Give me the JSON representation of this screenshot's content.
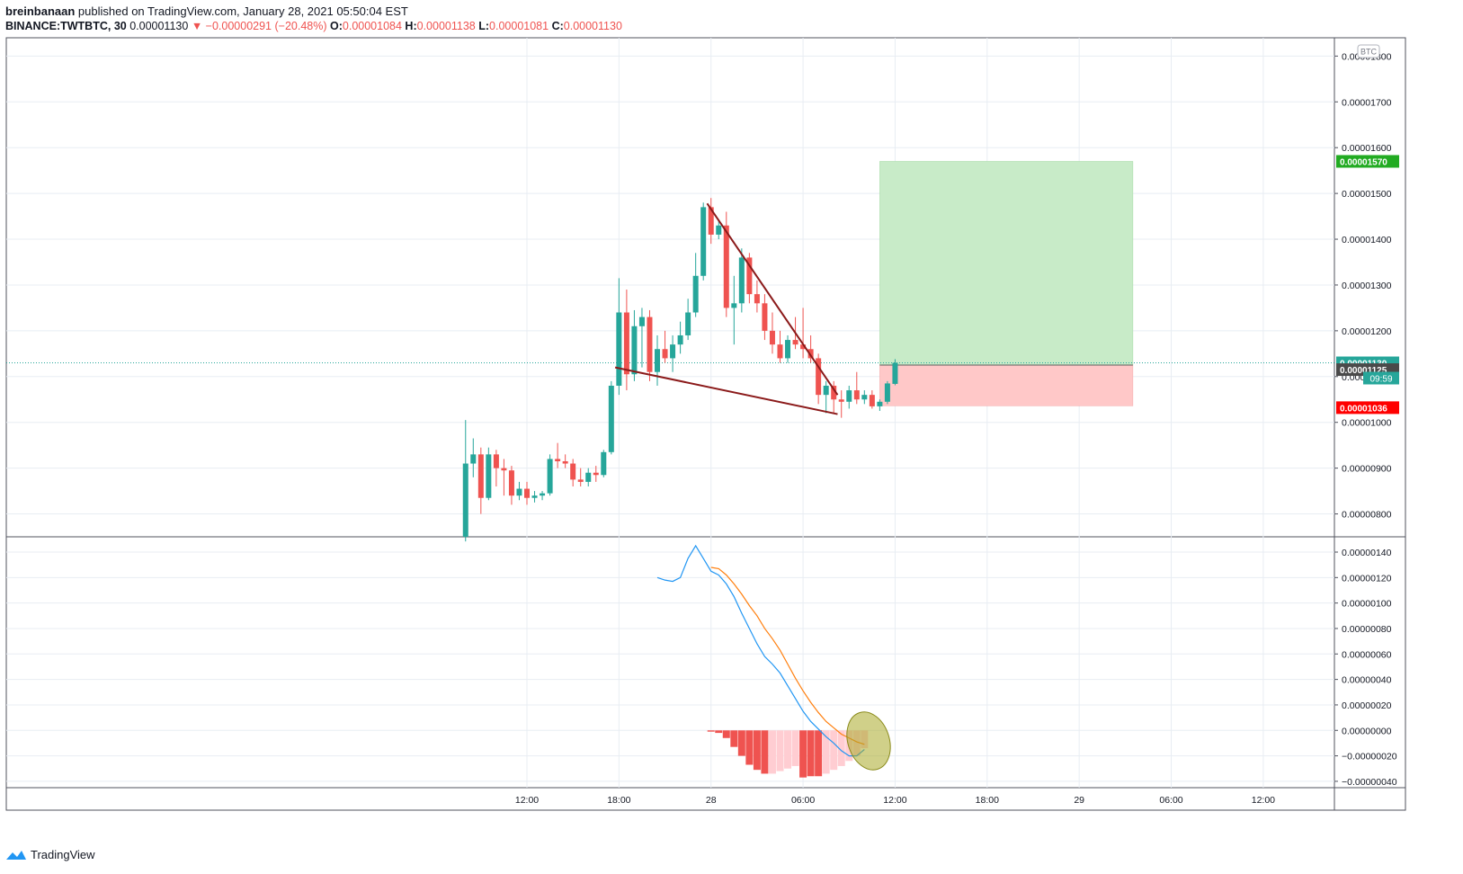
{
  "header": {
    "author": "breinbanaan",
    "published_text": "published on TradingView.com, January 28, 2021 05:50:04 EST"
  },
  "ticker": {
    "symbol": "BINANCE:TWTBTC, 30",
    "last": "0.00001130",
    "arrow": "▼",
    "change": "−0.00000291 (−20.48%)",
    "o_label": "O:",
    "o": "0.00001084",
    "h_label": "H:",
    "h": "0.00001138",
    "l_label": "L:",
    "l": "0.00001081",
    "c_label": "C:",
    "c": "0.00001130"
  },
  "footer": {
    "brand": "TradingView"
  },
  "colors": {
    "up": "#26a69a",
    "down": "#ef5350",
    "trend": "#8b1a1a",
    "macd": "#2196f3",
    "signal": "#ff7f0e",
    "hist_down": "#ef5350",
    "hist_light": "#ffcdd2",
    "profit": "#c8ebc8",
    "loss": "#ffc8c8",
    "grid": "#e8edf3"
  },
  "chart_data": [
    {
      "type": "candlestick",
      "currency_badge": "BTC",
      "ylim": [
        7.5e-06,
        1.84e-05
      ],
      "y_ticks": [
        "0.00001800",
        "0.00001700",
        "0.00001600",
        "0.00001500",
        "0.00001400",
        "0.00001300",
        "0.00001200",
        "0.00001100",
        "0.00001000",
        "0.00000900",
        "0.00000800"
      ],
      "x_ticks": [
        {
          "t": 0,
          "label": "12:00"
        },
        {
          "t": 12,
          "label": "18:00"
        },
        {
          "t": 24,
          "label": "28"
        },
        {
          "t": 36,
          "label": "06:00"
        },
        {
          "t": 48,
          "label": "12:00"
        },
        {
          "t": 60,
          "label": "18:00"
        },
        {
          "t": 72,
          "label": "29"
        },
        {
          "t": 84,
          "label": "06:00"
        },
        {
          "t": 96,
          "label": "12:00"
        }
      ],
      "start_t": -8,
      "candles": [
        {
          "o": 7.5e-06,
          "h": 1.005e-05,
          "l": 7.4e-06,
          "c": 9.1e-06
        },
        {
          "o": 9.1e-06,
          "h": 9.65e-06,
          "l": 8.8e-06,
          "c": 9.3e-06
        },
        {
          "o": 9.3e-06,
          "h": 9.45e-06,
          "l": 8e-06,
          "c": 8.35e-06
        },
        {
          "o": 8.35e-06,
          "h": 9.45e-06,
          "l": 8.3e-06,
          "c": 9.3e-06
        },
        {
          "o": 9.3e-06,
          "h": 9.4e-06,
          "l": 8.6e-06,
          "c": 9e-06
        },
        {
          "o": 9e-06,
          "h": 9.2e-06,
          "l": 8.4e-06,
          "c": 8.95e-06
        },
        {
          "o": 8.95e-06,
          "h": 9.05e-06,
          "l": 8.2e-06,
          "c": 8.4e-06
        },
        {
          "o": 8.4e-06,
          "h": 8.7e-06,
          "l": 8.3e-06,
          "c": 8.55e-06
        },
        {
          "o": 8.55e-06,
          "h": 8.7e-06,
          "l": 8.2e-06,
          "c": 8.35e-06
        },
        {
          "o": 8.35e-06,
          "h": 8.5e-06,
          "l": 8.25e-06,
          "c": 8.4e-06
        },
        {
          "o": 8.4e-06,
          "h": 8.5e-06,
          "l": 8.3e-06,
          "c": 8.45e-06
        },
        {
          "o": 8.45e-06,
          "h": 9.3e-06,
          "l": 8.4e-06,
          "c": 9.2e-06
        },
        {
          "o": 9.2e-06,
          "h": 9.55e-06,
          "l": 9e-06,
          "c": 9.15e-06
        },
        {
          "o": 9.15e-06,
          "h": 9.3e-06,
          "l": 9e-06,
          "c": 9.1e-06
        },
        {
          "o": 9.1e-06,
          "h": 9.2e-06,
          "l": 8.6e-06,
          "c": 8.75e-06
        },
        {
          "o": 8.75e-06,
          "h": 9e-06,
          "l": 8.6e-06,
          "c": 8.7e-06
        },
        {
          "o": 8.7e-06,
          "h": 9e-06,
          "l": 8.6e-06,
          "c": 8.9e-06
        },
        {
          "o": 8.9e-06,
          "h": 9.05e-06,
          "l": 8.7e-06,
          "c": 8.85e-06
        },
        {
          "o": 8.85e-06,
          "h": 9.4e-06,
          "l": 8.8e-06,
          "c": 9.35e-06
        },
        {
          "o": 9.35e-06,
          "h": 1.09e-05,
          "l": 9.3e-06,
          "c": 1.08e-05
        },
        {
          "o": 1.08e-05,
          "h": 1.315e-05,
          "l": 1.06e-05,
          "c": 1.24e-05
        },
        {
          "o": 1.24e-05,
          "h": 1.29e-05,
          "l": 1.07e-05,
          "c": 1.105e-05
        },
        {
          "o": 1.105e-05,
          "h": 1.245e-05,
          "l": 1.09e-05,
          "c": 1.21e-05
        },
        {
          "o": 1.21e-05,
          "h": 1.25e-05,
          "l": 1.12e-05,
          "c": 1.23e-05
        },
        {
          "o": 1.23e-05,
          "h": 1.245e-05,
          "l": 1.09e-05,
          "c": 1.11e-05
        },
        {
          "o": 1.11e-05,
          "h": 1.19e-05,
          "l": 1.08e-05,
          "c": 1.16e-05
        },
        {
          "o": 1.16e-05,
          "h": 1.2e-05,
          "l": 1.13e-05,
          "c": 1.14e-05
        },
        {
          "o": 1.14e-05,
          "h": 1.19e-05,
          "l": 1.11e-05,
          "c": 1.17e-05
        },
        {
          "o": 1.17e-05,
          "h": 1.22e-05,
          "l": 1.15e-05,
          "c": 1.19e-05
        },
        {
          "o": 1.19e-05,
          "h": 1.27e-05,
          "l": 1.18e-05,
          "c": 1.24e-05
        },
        {
          "o": 1.24e-05,
          "h": 1.37e-05,
          "l": 1.23e-05,
          "c": 1.32e-05
        },
        {
          "o": 1.32e-05,
          "h": 1.48e-05,
          "l": 1.31e-05,
          "c": 1.47e-05
        },
        {
          "o": 1.47e-05,
          "h": 1.49e-05,
          "l": 1.39e-05,
          "c": 1.41e-05
        },
        {
          "o": 1.41e-05,
          "h": 1.44e-05,
          "l": 1.4e-05,
          "c": 1.43e-05
        },
        {
          "o": 1.43e-05,
          "h": 1.46e-05,
          "l": 1.23e-05,
          "c": 1.25e-05
        },
        {
          "o": 1.25e-05,
          "h": 1.32e-05,
          "l": 1.17e-05,
          "c": 1.26e-05
        },
        {
          "o": 1.26e-05,
          "h": 1.38e-05,
          "l": 1.24e-05,
          "c": 1.36e-05
        },
        {
          "o": 1.36e-05,
          "h": 1.37e-05,
          "l": 1.26e-05,
          "c": 1.28e-05
        },
        {
          "o": 1.28e-05,
          "h": 1.31e-05,
          "l": 1.24e-05,
          "c": 1.26e-05
        },
        {
          "o": 1.26e-05,
          "h": 1.28e-05,
          "l": 1.18e-05,
          "c": 1.2e-05
        },
        {
          "o": 1.2e-05,
          "h": 1.24e-05,
          "l": 1.15e-05,
          "c": 1.17e-05
        },
        {
          "o": 1.17e-05,
          "h": 1.2e-05,
          "l": 1.13e-05,
          "c": 1.14e-05
        },
        {
          "o": 1.14e-05,
          "h": 1.19e-05,
          "l": 1.13e-05,
          "c": 1.18e-05
        },
        {
          "o": 1.18e-05,
          "h": 1.23e-05,
          "l": 1.16e-05,
          "c": 1.17e-05
        },
        {
          "o": 1.17e-05,
          "h": 1.25e-05,
          "l": 1.14e-05,
          "c": 1.16e-05
        },
        {
          "o": 1.16e-05,
          "h": 1.19e-05,
          "l": 1.13e-05,
          "c": 1.14e-05
        },
        {
          "o": 1.14e-05,
          "h": 1.15e-05,
          "l": 1.04e-05,
          "c": 1.06e-05
        },
        {
          "o": 1.06e-05,
          "h": 1.09e-05,
          "l": 1.02e-05,
          "c": 1.08e-05
        },
        {
          "o": 1.08e-05,
          "h": 1.09e-05,
          "l": 1.02e-05,
          "c": 1.05e-05
        },
        {
          "o": 1.05e-05,
          "h": 1.07e-05,
          "l": 1.01e-05,
          "c": 1.045e-05
        },
        {
          "o": 1.045e-05,
          "h": 1.08e-05,
          "l": 1.03e-05,
          "c": 1.07e-05
        },
        {
          "o": 1.07e-05,
          "h": 1.11e-05,
          "l": 1.04e-05,
          "c": 1.05e-05
        },
        {
          "o": 1.05e-05,
          "h": 1.07e-05,
          "l": 1.04e-05,
          "c": 1.06e-05
        },
        {
          "o": 1.06e-05,
          "h": 1.07e-05,
          "l": 1.03e-05,
          "c": 1.035e-05
        },
        {
          "o": 1.035e-05,
          "h": 1.05e-05,
          "l": 1.025e-05,
          "c": 1.045e-05
        },
        {
          "o": 1.045e-05,
          "h": 1.09e-05,
          "l": 1.04e-05,
          "c": 1.085e-05
        },
        {
          "o": 1.084e-05,
          "h": 1.138e-05,
          "l": 1.081e-05,
          "c": 1.13e-05
        }
      ],
      "trendlines": [
        {
          "t1": 23.5,
          "p1": 1.478e-05,
          "t2": 40.5,
          "p2": 1.06e-05
        },
        {
          "t1": 11.5,
          "p1": 1.12e-05,
          "t2": 40.5,
          "p2": 1.018e-05
        }
      ],
      "position": {
        "t_start": 46,
        "t_end": 79,
        "entry": 1.125e-05,
        "target": 1.57e-05,
        "stop": 1.036e-05
      },
      "price_labels": [
        {
          "price": 1.57e-05,
          "text": "0.00001570",
          "bg": "#22ab22",
          "fg": "#ffffff"
        },
        {
          "price": 1.13e-05,
          "text": "0.00001130",
          "bg": "#26a69a",
          "fg": "#ffffff"
        },
        {
          "price": 1.125e-05,
          "text": "0.00001125",
          "bg": "#4a4a4a",
          "fg": "#ffffff"
        },
        {
          "price": 1.036e-05,
          "text": "0.00001036",
          "bg": "#ff0000",
          "fg": "#ffffff"
        }
      ],
      "countdown": "09:59"
    },
    {
      "type": "macd",
      "ylim": [
        -4.5e-07,
        1.52e-06
      ],
      "y_ticks": [
        "0.00000140",
        "0.00000120",
        "0.00000100",
        "0.00000080",
        "0.00000060",
        "0.00000040",
        "0.00000020",
        "0.00000000",
        "−0.00000020",
        "−0.00000040"
      ],
      "macd_start_t": 17,
      "macd": [
        1.2e-06,
        1.18e-06,
        1.17e-06,
        1.2e-06,
        1.35e-06,
        1.45e-06,
        1.35e-06,
        1.25e-06,
        1.22e-06,
        1.15e-06,
        1.05e-06,
        9.2e-07,
        8e-07,
        6.8e-07,
        5.8e-07,
        5.2e-07,
        4.5e-07,
        3.5e-07,
        2.5e-07,
        1.5e-07,
        7e-08,
        1e-08,
        -5e-08,
        -1e-07,
        -1.6e-07,
        -2e-07,
        -2e-07,
        -1.5e-07
      ],
      "signal_start_t": 24,
      "signal": [
        1.28e-06,
        1.27e-06,
        1.22e-06,
        1.15e-06,
        1.07e-06,
        9.8e-07,
        9e-07,
        8e-07,
        7.2e-07,
        6.3e-07,
        5.2e-07,
        4.1e-07,
        3.1e-07,
        2.2e-07,
        1.4e-07,
        7e-08,
        2e-08,
        -3e-08,
        -6e-08,
        -9e-08,
        -1.1e-07
      ],
      "hist_start_t": 24,
      "hist": [
        -1e-08,
        -2e-08,
        -6e-08,
        -1.3e-07,
        -2e-07,
        -2.7e-07,
        -3.1e-07,
        -3.4e-07,
        -3.4e-07,
        -3.2e-07,
        -3e-07,
        -2.8e-07,
        -3.7e-07,
        -3.6e-07,
        -3.6e-07,
        -3.4e-07,
        -3.1e-07,
        -2.8e-07,
        -2.4e-07,
        -2e-07,
        -1.4e-07
      ],
      "hist_dark": [
        1,
        1,
        1,
        1,
        1,
        1,
        1,
        1,
        0,
        0,
        0,
        0,
        1,
        1,
        1,
        0,
        0,
        0,
        0,
        0,
        0
      ]
    }
  ]
}
